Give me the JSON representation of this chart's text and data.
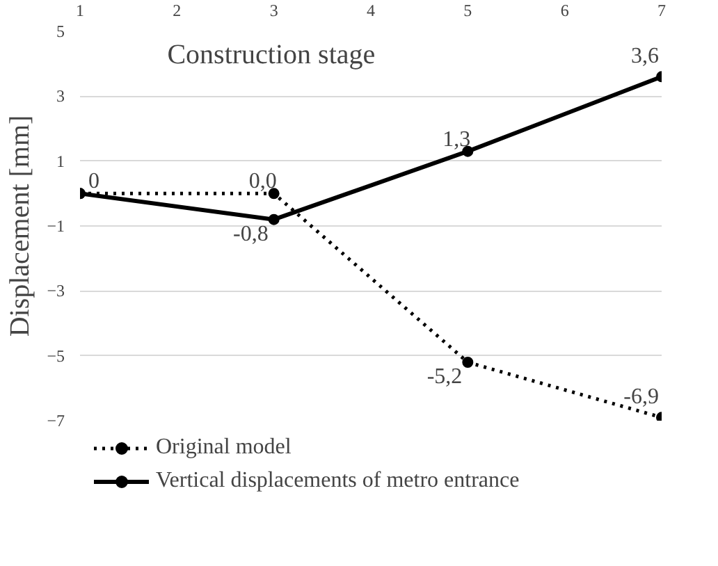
{
  "chart_data": {
    "type": "line",
    "xlabel": "Construction stage",
    "ylabel": "Displacement [mm]",
    "x": [
      1,
      3,
      5,
      7
    ],
    "xlim": [
      1,
      7
    ],
    "xticks": [
      1,
      2,
      3,
      4,
      5,
      6,
      7
    ],
    "ylim": [
      -7,
      5
    ],
    "yticks": [
      -7,
      -5,
      -3,
      -1,
      1,
      3,
      5
    ],
    "series": [
      {
        "name": "Original model",
        "color": "#000000",
        "line_style": "dotted",
        "values": [
          0,
          0,
          -5.2,
          -6.9
        ],
        "value_labels": [
          null,
          "0,0",
          "-5,2",
          "-6,9"
        ]
      },
      {
        "name": "Vertical displacements of metro entrance",
        "color": "#000000",
        "line_style": "solid",
        "values": [
          0,
          -0.8,
          1.3,
          3.6
        ],
        "value_labels": [
          "0",
          "-0,8",
          "1,3",
          "3,6"
        ]
      }
    ],
    "marker": "circle",
    "grid": "y",
    "legend": "bottom"
  }
}
